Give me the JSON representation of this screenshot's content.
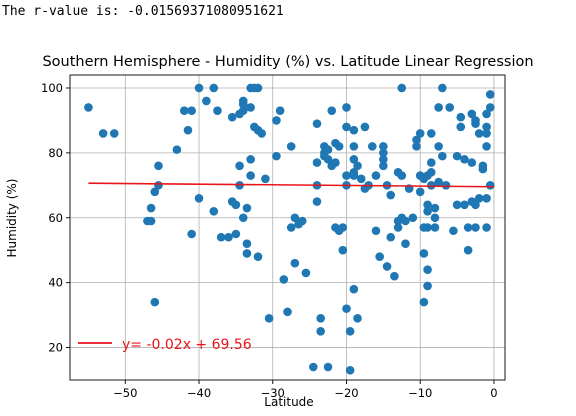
{
  "output": {
    "text": "The r-value is: -0.01569371080951621"
  },
  "chart_data": {
    "type": "scatter",
    "title": "Southern Hemisphere - Humidity (%) vs. Latitude Linear Regression",
    "xlabel": "Latitude",
    "ylabel": "Humidity (%)",
    "xlim": [
      -57.5,
      1.5
    ],
    "ylim": [
      10,
      104
    ],
    "xticks": [
      -50,
      -40,
      -30,
      -20,
      -10,
      0
    ],
    "yticks": [
      20,
      40,
      60,
      80,
      100
    ],
    "grid": true,
    "point_color": "#1f77b4",
    "line_color": "#e8151b",
    "regression": {
      "slope": -0.02,
      "intercept": 69.56,
      "x_range": [
        -55,
        0
      ],
      "equation": "y= -0.02x + 69.56"
    },
    "legend": {
      "placement": "bottom-left"
    },
    "points": [
      [
        -55,
        94
      ],
      [
        -53,
        86
      ],
      [
        -51.5,
        86
      ],
      [
        -47,
        59
      ],
      [
        -46.5,
        59
      ],
      [
        -46.5,
        63
      ],
      [
        -46,
        68
      ],
      [
        -46,
        34
      ],
      [
        -45.5,
        70
      ],
      [
        -45.5,
        76
      ],
      [
        -43,
        81
      ],
      [
        -42,
        93
      ],
      [
        -41.5,
        87
      ],
      [
        -41,
        55
      ],
      [
        -41,
        93
      ],
      [
        -40,
        100
      ],
      [
        -40,
        66
      ],
      [
        -39,
        96
      ],
      [
        -38,
        100
      ],
      [
        -38,
        62
      ],
      [
        -37.5,
        93
      ],
      [
        -37,
        54
      ],
      [
        -36,
        54
      ],
      [
        -35.5,
        91
      ],
      [
        -35.5,
        65
      ],
      [
        -35,
        55
      ],
      [
        -35,
        64
      ],
      [
        -34.5,
        92
      ],
      [
        -34.5,
        76
      ],
      [
        -34.5,
        70
      ],
      [
        -34,
        96
      ],
      [
        -34,
        95
      ],
      [
        -34,
        93
      ],
      [
        -34,
        60
      ],
      [
        -33.5,
        63
      ],
      [
        -33.5,
        52
      ],
      [
        -33.5,
        49
      ],
      [
        -33,
        100
      ],
      [
        -33,
        94
      ],
      [
        -33,
        78
      ],
      [
        -33,
        73
      ],
      [
        -32.5,
        100
      ],
      [
        -32.5,
        88
      ],
      [
        -32,
        100
      ],
      [
        -32,
        87
      ],
      [
        -32,
        48
      ],
      [
        -31.5,
        86
      ],
      [
        -31,
        72
      ],
      [
        -30.5,
        29
      ],
      [
        -29.5,
        79
      ],
      [
        -29.5,
        90
      ],
      [
        -29,
        93
      ],
      [
        -28.5,
        41
      ],
      [
        -28,
        31
      ],
      [
        -27.5,
        57
      ],
      [
        -27.5,
        82
      ],
      [
        -27,
        46
      ],
      [
        -27,
        60
      ],
      [
        -26.5,
        58
      ],
      [
        -26,
        59
      ],
      [
        -25.5,
        43
      ],
      [
        -24.5,
        14
      ],
      [
        -24,
        77
      ],
      [
        -24,
        89
      ],
      [
        -24,
        65
      ],
      [
        -24,
        70
      ],
      [
        -23.5,
        25
      ],
      [
        -23.5,
        29
      ],
      [
        -23,
        82
      ],
      [
        -23,
        79
      ],
      [
        -23,
        80
      ],
      [
        -22.5,
        14
      ],
      [
        -22.5,
        78
      ],
      [
        -22.5,
        81
      ],
      [
        -22,
        93
      ],
      [
        -22,
        76
      ],
      [
        -21.5,
        77
      ],
      [
        -21.5,
        83
      ],
      [
        -21.5,
        57
      ],
      [
        -21,
        56
      ],
      [
        -21,
        82
      ],
      [
        -20.5,
        50
      ],
      [
        -20.5,
        57
      ],
      [
        -20,
        94
      ],
      [
        -20,
        70
      ],
      [
        -20,
        88
      ],
      [
        -20,
        73
      ],
      [
        -20,
        32
      ],
      [
        -19.5,
        13
      ],
      [
        -19.5,
        25
      ],
      [
        -19,
        38
      ],
      [
        -19,
        82
      ],
      [
        -19,
        87
      ],
      [
        -19,
        78
      ],
      [
        -19,
        74
      ],
      [
        -19,
        73
      ],
      [
        -18.5,
        76
      ],
      [
        -18.5,
        29
      ],
      [
        -18,
        72
      ],
      [
        -17.5,
        69
      ],
      [
        -17.5,
        88
      ],
      [
        -17,
        70
      ],
      [
        -16.5,
        82
      ],
      [
        -16,
        56
      ],
      [
        -16,
        73
      ],
      [
        -15.5,
        48
      ],
      [
        -15,
        82
      ],
      [
        -15,
        80
      ],
      [
        -15,
        78
      ],
      [
        -15,
        76
      ],
      [
        -14.5,
        45
      ],
      [
        -14.5,
        70
      ],
      [
        -14,
        67
      ],
      [
        -14,
        54
      ],
      [
        -13.5,
        42
      ],
      [
        -13,
        57
      ],
      [
        -13,
        59
      ],
      [
        -13,
        74
      ],
      [
        -12.5,
        60
      ],
      [
        -12.5,
        100
      ],
      [
        -12.5,
        73
      ],
      [
        -12,
        52
      ],
      [
        -12,
        59
      ],
      [
        -11.5,
        69
      ],
      [
        -11,
        60
      ],
      [
        -10.5,
        82
      ],
      [
        -10.5,
        84
      ],
      [
        -10,
        86
      ],
      [
        -10,
        68
      ],
      [
        -10,
        73
      ],
      [
        -9.5,
        57
      ],
      [
        -9.5,
        72
      ],
      [
        -9.5,
        49
      ],
      [
        -9.5,
        34
      ],
      [
        -9,
        64
      ],
      [
        -9,
        62
      ],
      [
        -9,
        73
      ],
      [
        -9,
        44
      ],
      [
        -9,
        39
      ],
      [
        -9,
        57
      ],
      [
        -8.5,
        86
      ],
      [
        -8.5,
        77
      ],
      [
        -8.5,
        74
      ],
      [
        -8.5,
        70
      ],
      [
        -8,
        63
      ],
      [
        -8,
        60
      ],
      [
        -8,
        57
      ],
      [
        -7.5,
        94
      ],
      [
        -7.5,
        71
      ],
      [
        -7.5,
        82
      ],
      [
        -7,
        100
      ],
      [
        -7,
        79
      ],
      [
        -6.5,
        70
      ],
      [
        -6,
        94
      ],
      [
        -5.5,
        56
      ],
      [
        -5,
        64
      ],
      [
        -5,
        79
      ],
      [
        -4.5,
        88
      ],
      [
        -4.5,
        91
      ],
      [
        -4,
        78
      ],
      [
        -4,
        64
      ],
      [
        -3.5,
        50
      ],
      [
        -3.5,
        57
      ],
      [
        -3,
        77
      ],
      [
        -3,
        65
      ],
      [
        -3,
        92
      ],
      [
        -2.5,
        89
      ],
      [
        -2.5,
        90
      ],
      [
        -2.5,
        57
      ],
      [
        -2.5,
        64
      ],
      [
        -2,
        86
      ],
      [
        -2,
        66
      ],
      [
        -1.5,
        75
      ],
      [
        -1.5,
        76
      ],
      [
        -1,
        57
      ],
      [
        -1,
        92
      ],
      [
        -1,
        82
      ],
      [
        -1,
        66
      ],
      [
        -1,
        86
      ],
      [
        -1,
        88
      ],
      [
        -0.5,
        98
      ],
      [
        -0.5,
        70
      ],
      [
        -0.5,
        94
      ]
    ]
  }
}
